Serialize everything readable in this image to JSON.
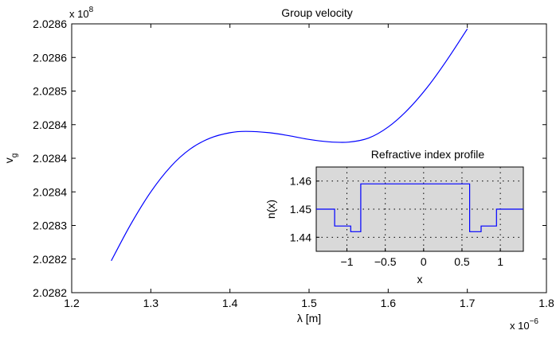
{
  "chart_data": [
    {
      "type": "line",
      "title": "Group velocity",
      "xlabel": "λ [m]",
      "ylabel_main": "v",
      "ylabel_sub": "g",
      "x_exponent_label": "x 10",
      "x_exponent_power": "−6",
      "y_exponent_label": "x 10",
      "y_exponent_power": "8",
      "xlim": [
        1.2,
        1.8
      ],
      "ylim": [
        0,
        8
      ],
      "x_ticks": [
        1.2,
        1.3,
        1.4,
        1.5,
        1.6,
        1.7,
        1.8
      ],
      "x_tick_labels": [
        "1.2",
        "1.3",
        "1.4",
        "1.5",
        "1.6",
        "1.7",
        "1.8"
      ],
      "y_ticks": [
        0,
        1,
        2,
        3,
        4,
        5,
        6,
        7,
        8
      ],
      "y_tick_labels": [
        "2.0282",
        "2.0282",
        "2.0283",
        "2.0284",
        "2.0284",
        "2.0284",
        "2.0285",
        "2.0286",
        "2.0286"
      ],
      "series": [
        {
          "name": "v_g",
          "color": "#0000ff",
          "x": [
            1.25,
            1.275,
            1.3,
            1.325,
            1.35,
            1.375,
            1.4,
            1.42,
            1.45,
            1.475,
            1.5,
            1.525,
            1.55,
            1.575,
            1.6,
            1.625,
            1.65,
            1.675,
            1.7
          ],
          "y": [
            0.95,
            2.05,
            3.0,
            3.75,
            4.28,
            4.6,
            4.76,
            4.8,
            4.76,
            4.67,
            4.56,
            4.49,
            4.48,
            4.6,
            4.93,
            5.45,
            6.13,
            6.95,
            7.85
          ]
        }
      ]
    },
    {
      "type": "line",
      "title": "Refractive index profile",
      "xlabel": "x",
      "ylabel": "n(x)",
      "xlim": [
        -1.4,
        1.3
      ],
      "ylim": [
        1.435,
        1.465
      ],
      "x_ticks": [
        -1,
        -0.5,
        0,
        0.5,
        1
      ],
      "x_tick_labels": [
        "−1",
        "−0.5",
        "0",
        "0.5",
        "1"
      ],
      "y_ticks": [
        1.44,
        1.45,
        1.46
      ],
      "y_tick_labels": [
        "1.44",
        "1.45",
        "1.46"
      ],
      "grid": true,
      "background": "#d9d9d9",
      "series": [
        {
          "name": "n(x)",
          "color": "#0000ff",
          "x": [
            -1.4,
            -1.16,
            -1.16,
            -0.95,
            -0.95,
            -0.82,
            -0.82,
            0.6,
            0.6,
            0.75,
            0.75,
            0.95,
            0.95,
            1.3
          ],
          "y": [
            1.45,
            1.45,
            1.444,
            1.444,
            1.442,
            1.442,
            1.459,
            1.459,
            1.442,
            1.442,
            1.444,
            1.444,
            1.45,
            1.45
          ]
        }
      ]
    }
  ]
}
